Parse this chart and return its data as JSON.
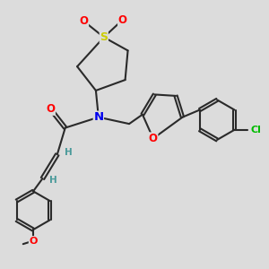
{
  "bg_color": "#dcdcdc",
  "bond_color": "#2a2a2a",
  "bond_width": 1.5,
  "atom_colors": {
    "O": "#ff0000",
    "N": "#0000ee",
    "S": "#cccc00",
    "Cl": "#00bb00",
    "C": "#2a2a2a",
    "H": "#4a9a9a"
  },
  "font_size": 8.5,
  "fig_size": [
    3.0,
    3.0
  ],
  "dpi": 100,
  "xlim": [
    0,
    10
  ],
  "ylim": [
    0,
    10
  ]
}
